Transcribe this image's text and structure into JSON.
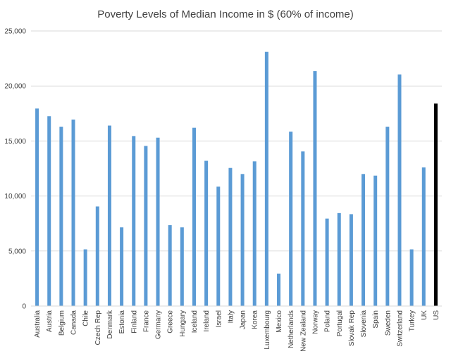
{
  "chart_data": {
    "type": "bar",
    "title": "Poverty Levels of Median Income in $ (60% of income)",
    "xlabel": "",
    "ylabel": "",
    "ylim": [
      0,
      25000
    ],
    "yticks": [
      0,
      5000,
      10000,
      15000,
      20000,
      25000
    ],
    "ytick_labels": [
      "0",
      "5,000",
      "10,000",
      "15,000",
      "20,000",
      "25,000"
    ],
    "grid": true,
    "bar_color": "#5b9bd5",
    "highlight_color": "#000000",
    "highlight_category": "US",
    "categories": [
      "Australia",
      "Austria",
      "Belgium",
      "Canada",
      "Chile",
      "Czech Rep",
      "Denmark",
      "Estonia",
      "Finland",
      "France",
      "Germany",
      "Greece",
      "Hungary",
      "Iceland",
      "Ireland",
      "Israel",
      "Italy",
      "Japan",
      "Korea",
      "Luxembourg",
      "Mexico",
      "Netherlands",
      "New Zealand",
      "Norway",
      "Poland",
      "Portugal",
      "Slovak Rep",
      "Slovenia",
      "Spain",
      "Sweden",
      "Switzerland",
      "Turkey",
      "UK",
      "US"
    ],
    "values": [
      17950,
      17250,
      16300,
      16950,
      5150,
      9050,
      16400,
      7150,
      15450,
      14550,
      15300,
      7350,
      7150,
      16200,
      13200,
      10850,
      12550,
      12000,
      13150,
      23100,
      2950,
      15850,
      14050,
      21350,
      7950,
      8450,
      8350,
      12000,
      11850,
      16300,
      21050,
      5150,
      12600,
      18400
    ]
  }
}
